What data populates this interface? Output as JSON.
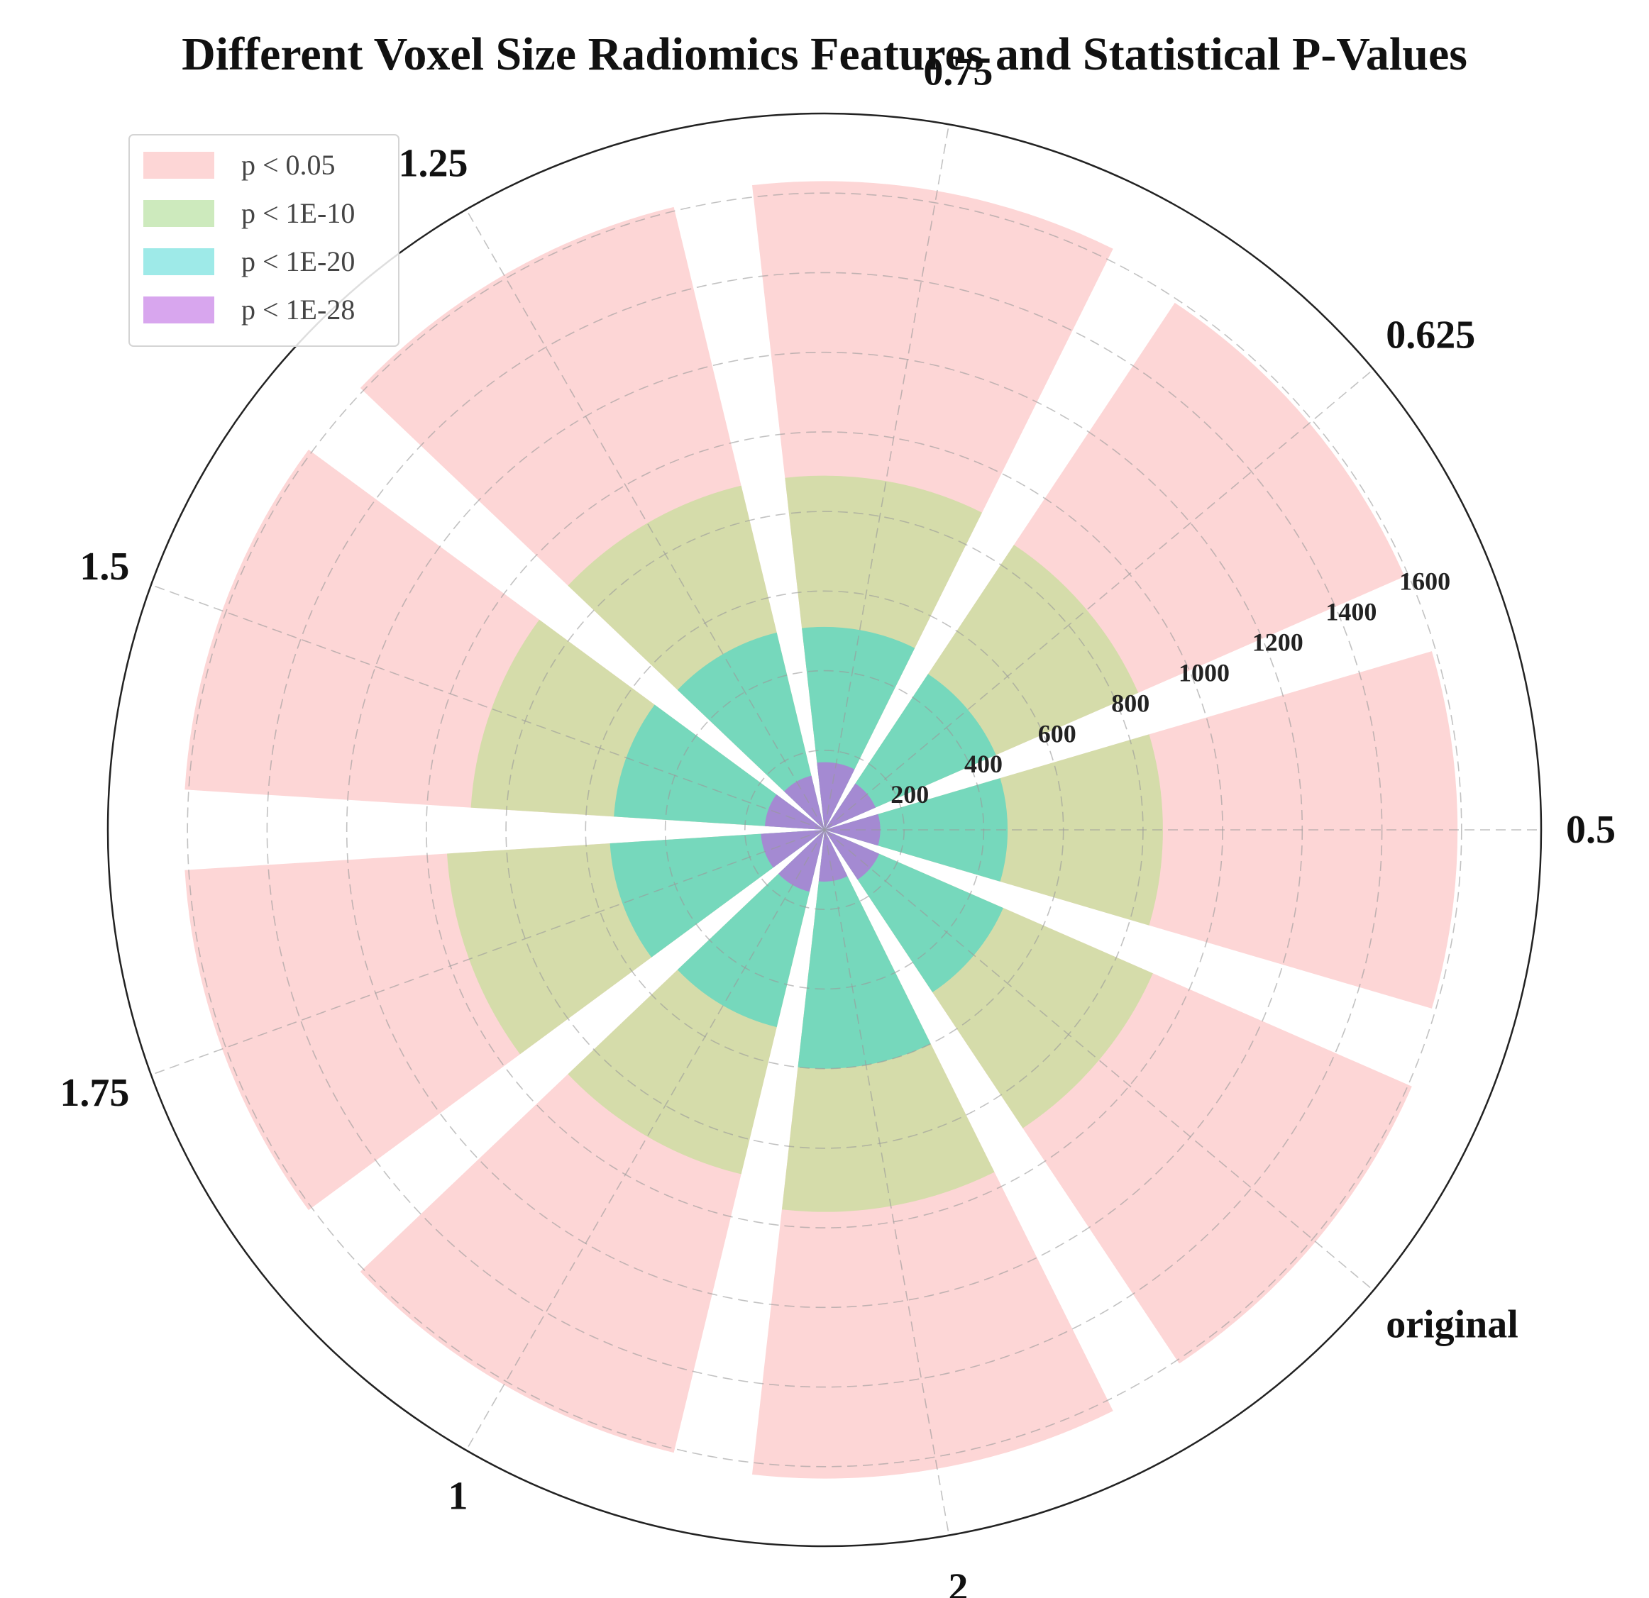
{
  "chart_data": {
    "type": "bar",
    "subtype": "polar-bar",
    "title": "Different Voxel Size Radiomics Features and Statistical P-Values",
    "categories": [
      "0.5",
      "0.625",
      "0.75",
      "1.25",
      "1.5",
      "1.75",
      "1",
      "2",
      "original"
    ],
    "series": [
      {
        "name": "p < 0.05",
        "color": "#fdd6d6",
        "values": [
          1590,
          1590,
          1630,
          1610,
          1610,
          1610,
          1610,
          1630,
          1610
        ]
      },
      {
        "name": "p < 1E-10",
        "color": "#d5dcaa",
        "values": [
          850,
          860,
          890,
          890,
          890,
          950,
          890,
          960,
          900
        ]
      },
      {
        "name": "p < 1E-20",
        "color": "#76d8bc",
        "values": [
          460,
          470,
          510,
          510,
          530,
          540,
          510,
          600,
          490
        ]
      },
      {
        "name": "p < 1E-28",
        "color": "#a48ad2",
        "values": [
          140,
          140,
          170,
          140,
          150,
          160,
          160,
          130,
          150
        ]
      }
    ],
    "radial_ticks": [
      "200",
      "400",
      "600",
      "800",
      "1000",
      "1200",
      "1400",
      "1600"
    ],
    "radial_tick_values": [
      200,
      400,
      600,
      800,
      1000,
      1200,
      1400,
      1600
    ],
    "rlim": [
      0,
      1800
    ],
    "grid": true,
    "legend_position": "top-left"
  },
  "legend": {
    "items": [
      {
        "label": "p < 0.05",
        "color": "#fdd6d6"
      },
      {
        "label": "p < 1E-10",
        "color": "#cdeabd"
      },
      {
        "label": "p < 1E-20",
        "color": "#9eeae8"
      },
      {
        "label": "p < 1E-28",
        "color": "#d8a6ee"
      }
    ]
  }
}
